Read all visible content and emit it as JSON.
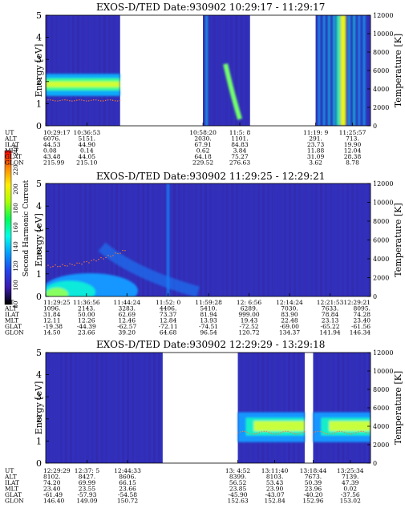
{
  "chart_data": [
    {
      "type": "heatmap",
      "title": "EXOS-D/TED   Date:930902  10:29:17 - 11:29:17",
      "ylabel": "Energy [eV]",
      "ylabel_right": "Temperature [K]",
      "ylim": [
        0,
        5
      ],
      "yticks": [
        "0",
        "1",
        "2",
        "3",
        "4",
        "5"
      ],
      "ylim_right": [
        0,
        12000
      ],
      "yticks_right": [
        "0",
        "2000",
        "4000",
        "6000",
        "8000",
        "10000",
        "12000"
      ],
      "row_labels": [
        "UT",
        "ALT",
        "ILAT",
        "MLT",
        "GLAT",
        "GLON"
      ],
      "columns": [
        {
          "values": [
            "10:29:17",
            "6076.",
            "44.53",
            "0.08",
            "43.48",
            "215.99"
          ]
        },
        {
          "values": [
            "10:36:53",
            "5151.",
            "44.90",
            "0.14",
            "44.05",
            "215.10"
          ]
        },
        {
          "values": [
            "10:58:20",
            "2030.",
            "67.91",
            "0.62",
            "64.18",
            "229.52"
          ]
        },
        {
          "values": [
            "11:5: 8",
            "1101.",
            "84.83",
            "3.84",
            "75.27",
            "276.63"
          ]
        },
        {
          "values": [
            "11:19: 9",
            "291.",
            "23.73",
            "11.88",
            "31.09",
            "3.62"
          ]
        },
        {
          "values": [
            "11:25:57",
            "713.",
            "19.90",
            "12.04",
            "28.38",
            "8.78"
          ]
        }
      ],
      "data_segments": [
        {
          "start": "10:29:17",
          "end": "10:43:00"
        },
        {
          "start": "10:58:20",
          "end": "11:07:00"
        },
        {
          "start": "11:19:09",
          "end": "11:29:17"
        }
      ]
    },
    {
      "type": "heatmap",
      "title": "EXOS-D/TED   Date:930902  11:29:25 - 12:29:21",
      "ylabel": "Energy [eV]",
      "ylabel_right": "Temperature [K]",
      "ylim": [
        0,
        5
      ],
      "yticks": [
        "0",
        "1",
        "2",
        "3",
        "4",
        "5"
      ],
      "ylim_right": [
        0,
        12000
      ],
      "yticks_right": [
        "0",
        "2000",
        "4000",
        "6000",
        "8000",
        "10000",
        "12000"
      ],
      "row_labels": [
        "UT",
        "ALT",
        "ILAT",
        "MLT",
        "GLAT",
        "GLON"
      ],
      "columns": [
        {
          "values": [
            "11:29:25",
            "1096.",
            "31.84",
            "12.11",
            "-19.38",
            "14.50"
          ]
        },
        {
          "values": [
            "11:36:56",
            "2143.",
            "50.00",
            "12.26",
            "-44.39",
            "23.66"
          ]
        },
        {
          "values": [
            "11:44:24",
            "3283.",
            "62.69",
            "12.46",
            "-62.57",
            "39.20"
          ]
        },
        {
          "values": [
            "11:52: 0",
            "4406.",
            "73.37",
            "12.84",
            "-72.11",
            "64.68"
          ]
        },
        {
          "values": [
            "11:59:28",
            "5410.",
            "81.94",
            "13.93",
            "-74.51",
            "96.54"
          ]
        },
        {
          "values": [
            "12: 6:56",
            "6289.",
            "999.00",
            "19.43",
            "-72.52",
            "120.72"
          ]
        },
        {
          "values": [
            "12:14:24",
            "7030.",
            "83.90",
            "22.48",
            "-69.00",
            "134.37"
          ]
        },
        {
          "values": [
            "12:21:53",
            "7633.",
            "78.84",
            "23.13",
            "-65.22",
            "141.94"
          ]
        },
        {
          "values": [
            "12:29:21",
            "8095.",
            "74.28",
            "23.40",
            "-61.56",
            "146.34"
          ]
        }
      ],
      "data_segments": [
        {
          "start": "11:29:25",
          "end": "12:29:21"
        }
      ]
    },
    {
      "type": "heatmap",
      "title": "EXOS-D/TED   Date:930902  12:29:29 - 13:29:18",
      "ylabel": "Energy [eV]",
      "ylabel_right": "Temperature [K]",
      "ylim": [
        0,
        5
      ],
      "yticks": [
        "0",
        "1",
        "2",
        "3",
        "4",
        "5"
      ],
      "ylim_right": [
        0,
        12000
      ],
      "yticks_right": [
        "0",
        "2000",
        "4000",
        "6000",
        "8000",
        "10000",
        "12000"
      ],
      "row_labels": [
        "UT",
        "ALT",
        "ILAT",
        "MLT",
        "GLAT",
        "GLON"
      ],
      "columns": [
        {
          "values": [
            "12:29:29",
            "8102.",
            "74.20",
            "23.40",
            "-61.49",
            "146.40"
          ]
        },
        {
          "values": [
            "12:37: 5",
            "8427.",
            "69.99",
            "23.55",
            "-57.93",
            "149.09"
          ]
        },
        {
          "values": [
            "12:44:33",
            "8606.",
            "66.15",
            "23.66",
            "-54.58",
            "150.72"
          ]
        },
        {
          "values": [
            "13: 4:52",
            "8399.",
            "56.52",
            "23.85",
            "-45.90",
            "152.63"
          ]
        },
        {
          "values": [
            "13:11:40",
            "8103.",
            "53.43",
            "23.90",
            "-43.07",
            "152.84"
          ]
        },
        {
          "values": [
            "13:18:44",
            "7673.",
            "50.39",
            "23.96",
            "-40.20",
            "152.96"
          ]
        },
        {
          "values": [
            "13:25:34",
            "7139.",
            "47.39",
            "0.02",
            "-37.56",
            "153.02"
          ]
        }
      ],
      "data_segments": [
        {
          "start": "12:29:29",
          "end": "12:51:00"
        },
        {
          "start": "13:04:52",
          "end": "13:17:10"
        },
        {
          "start": "13:18:44",
          "end": "13:29:18"
        }
      ]
    }
  ],
  "colorbar": {
    "label": "Second Harmonic Current",
    "ticks": [
      "80",
      "100",
      "120",
      "140",
      "160",
      "180",
      "200",
      "220",
      "240"
    ],
    "colors": [
      "#000000",
      "#3a1ab0",
      "#2244ee",
      "#00a0ff",
      "#00ffe8",
      "#00ff55",
      "#aaff00",
      "#ffee00",
      "#ff8800",
      "#ff0000"
    ]
  }
}
